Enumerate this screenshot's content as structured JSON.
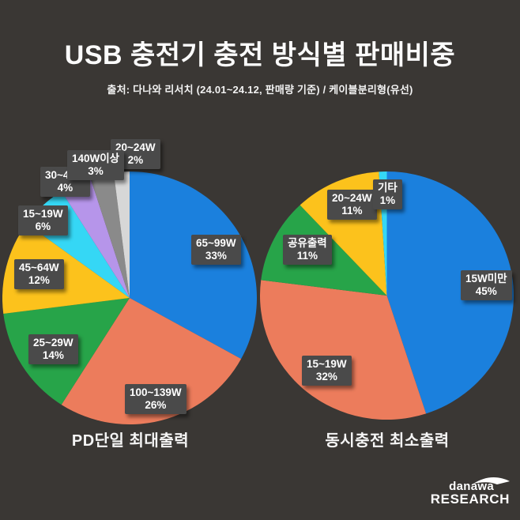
{
  "header": {
    "title": "USB 충전기 충전 방식별 판매비중",
    "subtitle": "출처: 다나와 리서치 (24.01~24.12, 판매량 기준) / 케이블분리형(유선)"
  },
  "chart_data": [
    {
      "type": "pie",
      "title": "PD단일 최대출력",
      "start_angle_deg": 0,
      "direction": "clockwise",
      "unit": "%",
      "slices": [
        {
          "label": "65~99W",
          "value": 33,
          "display": "33%",
          "color": "#1b80dd"
        },
        {
          "label": "100~139W",
          "value": 26,
          "display": "26%",
          "color": "#ec7c5c"
        },
        {
          "label": "25~29W",
          "value": 14,
          "display": "14%",
          "color": "#27a449"
        },
        {
          "label": "45~64W",
          "value": 12,
          "display": "12%",
          "color": "#fcc21c"
        },
        {
          "label": "15~19W",
          "value": 6,
          "display": "6%",
          "color": "#35d7f5"
        },
        {
          "label": "30~44W",
          "value": 4,
          "display": "4%",
          "color": "#b695ea"
        },
        {
          "label": "140W이상",
          "value": 3,
          "display": "3%",
          "color": "#8a8a8a"
        },
        {
          "label": "20~24W",
          "value": 2,
          "display": "2%",
          "color": "#d7d7d7"
        }
      ]
    },
    {
      "type": "pie",
      "title": "동시충전 최소출력",
      "start_angle_deg": 0,
      "direction": "clockwise",
      "unit": "%",
      "slices": [
        {
          "label": "15W미만",
          "value": 45,
          "display": "45%",
          "color": "#1b80dd"
        },
        {
          "label": "15~19W",
          "value": 32,
          "display": "32%",
          "color": "#ec7c5c"
        },
        {
          "label": "공유출력",
          "value": 11,
          "display": "11%",
          "color": "#27a449"
        },
        {
          "label": "20~24W",
          "value": 11,
          "display": "11%",
          "color": "#fcc21c"
        },
        {
          "label": "기타",
          "value": 1,
          "display": "1%",
          "color": "#35d7f5"
        }
      ]
    }
  ],
  "footer": {
    "logo_line1": "danawa",
    "logo_line2": "RESEARCH"
  },
  "colors": {
    "background": "#3a3734",
    "label_box": "#4a4a4a",
    "text": "#ffffff"
  }
}
